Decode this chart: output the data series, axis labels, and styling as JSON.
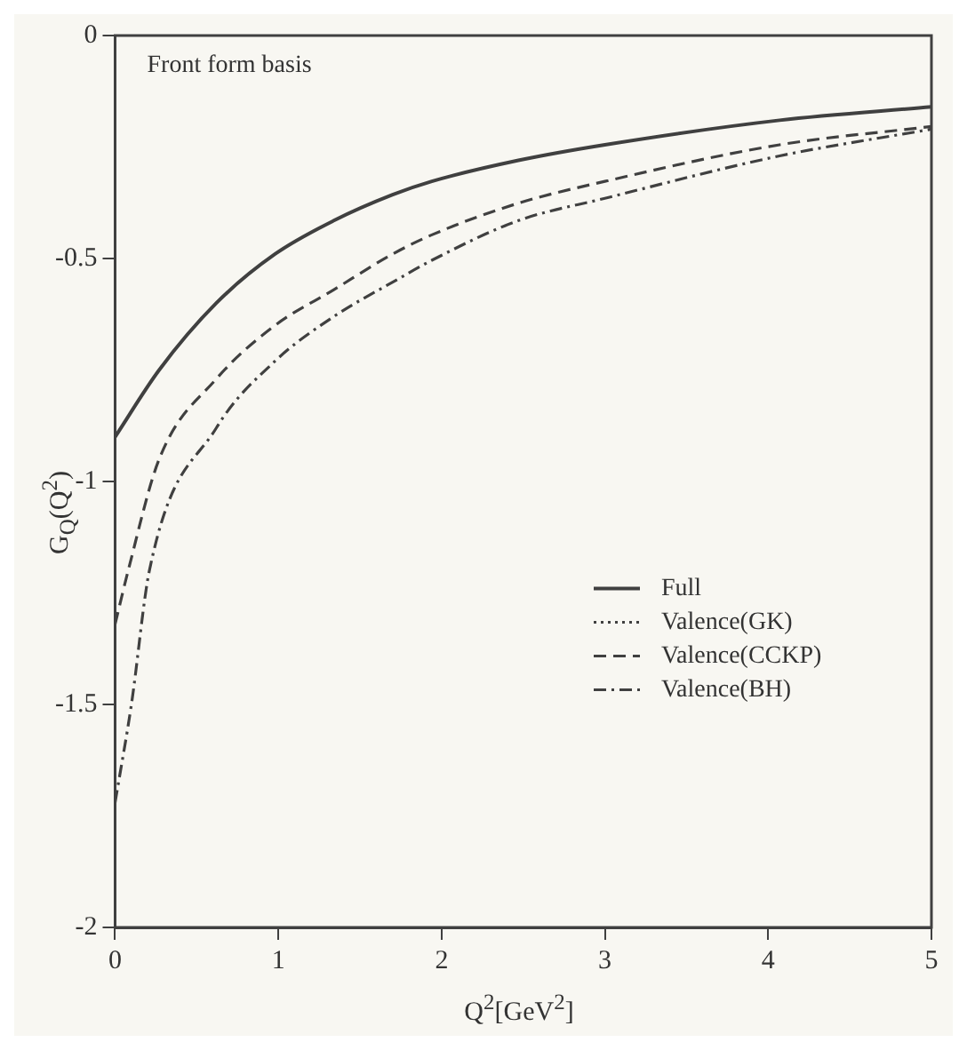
{
  "chart_data": {
    "type": "line",
    "xlabel": "Q$^{2}$[GeV$^{2}$]",
    "ylabel": "G$_{Q}$(Q$^{2}$)",
    "annotations": [
      "Front form basis"
    ],
    "xlim": [
      0,
      5
    ],
    "xticks": [
      0,
      1,
      2,
      3,
      4,
      5
    ],
    "ylim": [
      -2,
      0
    ],
    "yticks": [
      -2,
      -1.5,
      -1,
      -0.5,
      0
    ],
    "grid": false,
    "legend": "right",
    "marker": "none",
    "series": [
      {
        "name": "Full",
        "color": "#404040",
        "line_style": "solid",
        "x": [
          0,
          0.27,
          0.62,
          0.98,
          1.34,
          1.7,
          1.94,
          2.47,
          3.0,
          4.07,
          5
        ],
        "values": [
          -0.9,
          -0.75,
          -0.6,
          -0.49,
          -0.415,
          -0.357,
          -0.327,
          -0.28,
          -0.245,
          -0.19,
          -0.16
        ]
      },
      {
        "name": "Valence(GK)",
        "color": "#404040",
        "line_style": "dotted"
      },
      {
        "name": "Valence(CCKP)",
        "color": "#404040",
        "line_style": "dashed",
        "x": [
          0,
          0.08,
          0.27,
          0.62,
          0.98,
          1.34,
          1.7,
          1.94,
          2.47,
          3.0,
          4.07,
          5
        ],
        "values": [
          -1.32,
          -1.2,
          -0.95,
          -0.77,
          -0.65,
          -0.57,
          -0.49,
          -0.447,
          -0.376,
          -0.327,
          -0.245,
          -0.204
        ]
      },
      {
        "name": "Valence(BH)",
        "color": "#404040",
        "line_style": "dashdot",
        "x": [
          0,
          0.1,
          0.21,
          0.62,
          0.98,
          1.34,
          1.7,
          1.94,
          2.47,
          3.0,
          4.07,
          5
        ],
        "values": [
          -1.72,
          -1.5,
          -1.2,
          -0.88,
          -0.73,
          -0.63,
          -0.553,
          -0.504,
          -0.415,
          -0.365,
          -0.27,
          -0.21
        ]
      }
    ]
  }
}
